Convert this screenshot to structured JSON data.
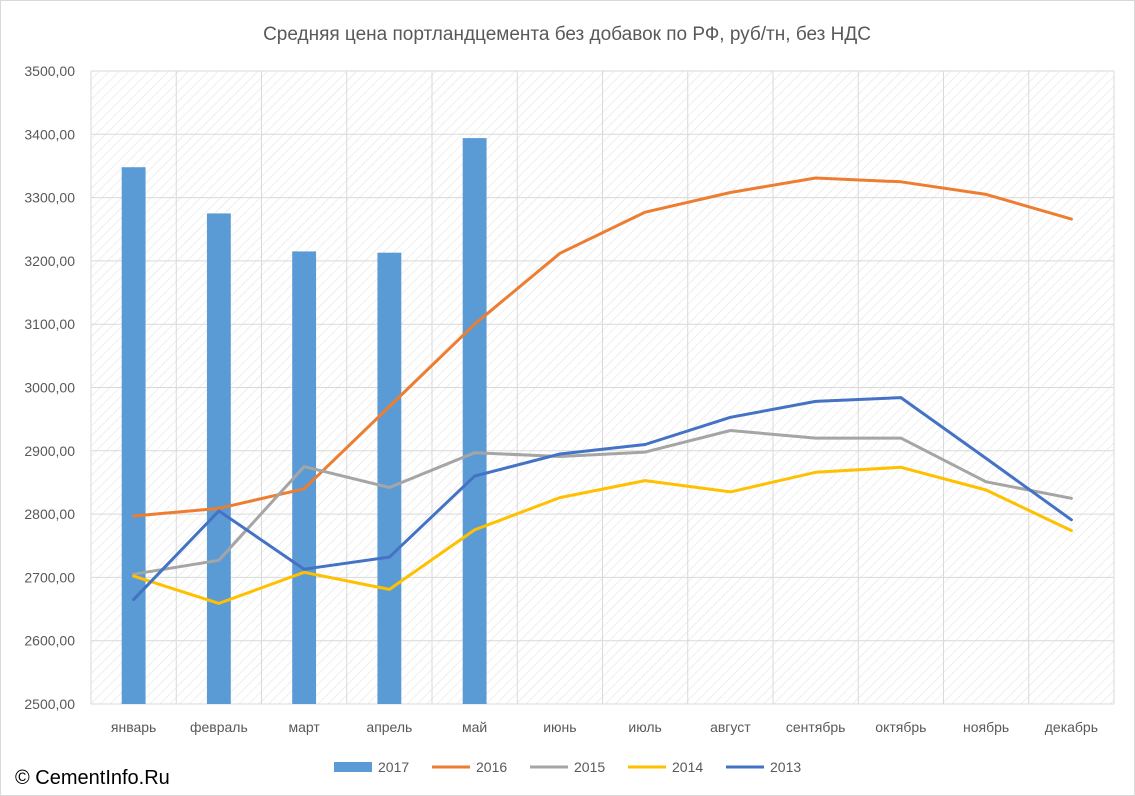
{
  "chart_data": {
    "type": "bar+line",
    "title": "Средняя цена портландцемента без добавок по РФ, руб/тн, без НДС",
    "categories": [
      "январь",
      "февраль",
      "март",
      "апрель",
      "май",
      "июнь",
      "июль",
      "август",
      "сентябрь",
      "октябрь",
      "ноябрь",
      "декабрь"
    ],
    "ylim": [
      2500,
      3500
    ],
    "yticks": [
      2500,
      2600,
      2700,
      2800,
      2900,
      3000,
      3100,
      3200,
      3300,
      3400,
      3500
    ],
    "ytick_labels": [
      "2500,00",
      "2600,00",
      "2700,00",
      "2800,00",
      "2900,00",
      "3000,00",
      "3100,00",
      "3200,00",
      "3300,00",
      "3400,00",
      "3500,00"
    ],
    "grid": true,
    "legend_position": "bottom",
    "series": [
      {
        "name": "2017",
        "kind": "bar",
        "color": "#5b9bd5",
        "values": [
          3348,
          3275,
          3215,
          3213,
          3394,
          null,
          null,
          null,
          null,
          null,
          null,
          null
        ]
      },
      {
        "name": "2016",
        "kind": "line",
        "color": "#ed7d31",
        "values": [
          2797,
          2809,
          2840,
          2970,
          3100,
          3212,
          3277,
          3308,
          3331,
          3325,
          3305,
          3266
        ]
      },
      {
        "name": "2015",
        "kind": "line",
        "color": "#a5a5a5",
        "values": [
          2705,
          2727,
          2875,
          2842,
          2897,
          2891,
          2898,
          2932,
          2920,
          2920,
          2851,
          2825
        ]
      },
      {
        "name": "2014",
        "kind": "line",
        "color": "#ffc000",
        "values": [
          2702,
          2659,
          2708,
          2681,
          2775,
          2826,
          2853,
          2835,
          2866,
          2874,
          2838,
          2774
        ]
      },
      {
        "name": "2013",
        "kind": "line",
        "color": "#4472c4",
        "values": [
          2665,
          2805,
          2713,
          2732,
          2860,
          2895,
          2910,
          2953,
          2978,
          2984,
          2888,
          2791
        ]
      }
    ]
  },
  "footer": {
    "copyright": "© CementInfo.Ru"
  }
}
